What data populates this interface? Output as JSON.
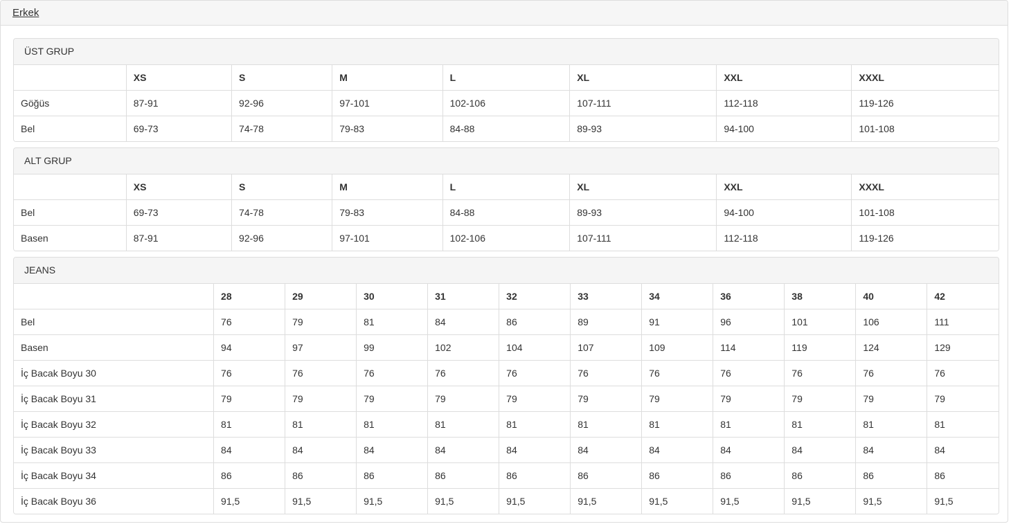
{
  "header": {
    "tab_label": "Erkek"
  },
  "colors": {
    "panel_heading_bg": "#f5f5f5",
    "strip_bg": "#f6f6f6",
    "border": "#dddddd",
    "text": "#333333"
  },
  "panels": [
    {
      "id": "ust-grup",
      "heading": "ÜST GRUP",
      "columns": [
        "XS",
        "S",
        "M",
        "L",
        "XL",
        "XXL",
        "XXXL"
      ],
      "rows": [
        {
          "label": "Göğüs",
          "values": [
            "87-91",
            "92-96",
            "97-101",
            "102-106",
            "107-111",
            "112-118",
            "119-126"
          ]
        },
        {
          "label": "Bel",
          "values": [
            "69-73",
            "74-78",
            "79-83",
            "84-88",
            "89-93",
            "94-100",
            "101-108"
          ]
        }
      ]
    },
    {
      "id": "alt-grup",
      "heading": "ALT GRUP",
      "columns": [
        "XS",
        "S",
        "M",
        "L",
        "XL",
        "XXL",
        "XXXL"
      ],
      "rows": [
        {
          "label": "Bel",
          "values": [
            "69-73",
            "74-78",
            "79-83",
            "84-88",
            "89-93",
            "94-100",
            "101-108"
          ]
        },
        {
          "label": "Basen",
          "values": [
            "87-91",
            "92-96",
            "97-101",
            "102-106",
            "107-111",
            "112-118",
            "119-126"
          ]
        }
      ]
    },
    {
      "id": "jeans",
      "heading": "JEANS",
      "columns": [
        "28",
        "29",
        "30",
        "31",
        "32",
        "33",
        "34",
        "36",
        "38",
        "40",
        "42"
      ],
      "rows": [
        {
          "label": "Bel",
          "values": [
            "76",
            "79",
            "81",
            "84",
            "86",
            "89",
            "91",
            "96",
            "101",
            "106",
            "111"
          ]
        },
        {
          "label": "Basen",
          "values": [
            "94",
            "97",
            "99",
            "102",
            "104",
            "107",
            "109",
            "114",
            "119",
            "124",
            "129"
          ]
        },
        {
          "label": "İç Bacak Boyu 30",
          "values": [
            "76",
            "76",
            "76",
            "76",
            "76",
            "76",
            "76",
            "76",
            "76",
            "76",
            "76"
          ]
        },
        {
          "label": "İç Bacak Boyu 31",
          "values": [
            "79",
            "79",
            "79",
            "79",
            "79",
            "79",
            "79",
            "79",
            "79",
            "79",
            "79"
          ]
        },
        {
          "label": "İç Bacak Boyu 32",
          "values": [
            "81",
            "81",
            "81",
            "81",
            "81",
            "81",
            "81",
            "81",
            "81",
            "81",
            "81"
          ]
        },
        {
          "label": "İç Bacak Boyu 33",
          "values": [
            "84",
            "84",
            "84",
            "84",
            "84",
            "84",
            "84",
            "84",
            "84",
            "84",
            "84"
          ]
        },
        {
          "label": "İç Bacak Boyu 34",
          "values": [
            "86",
            "86",
            "86",
            "86",
            "86",
            "86",
            "86",
            "86",
            "86",
            "86",
            "86"
          ]
        },
        {
          "label": "İç Bacak Boyu 36",
          "values": [
            "91,5",
            "91,5",
            "91,5",
            "91,5",
            "91,5",
            "91,5",
            "91,5",
            "91,5",
            "91,5",
            "91,5",
            "91,5"
          ]
        }
      ]
    }
  ]
}
